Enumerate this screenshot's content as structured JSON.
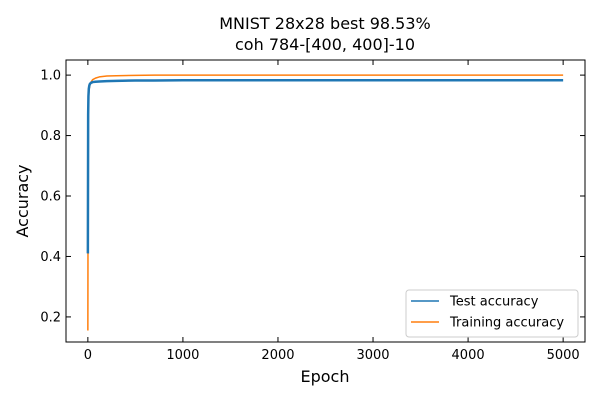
{
  "chart_data": {
    "type": "line",
    "title": "MNIST 28x28 best 98.53%",
    "subtitle": "coh 784-[400, 400]-10",
    "xlabel": "Epoch",
    "ylabel": "Accuracy",
    "xlim": [
      -230,
      5230
    ],
    "ylim": [
      0.117,
      1.05
    ],
    "xticks": [
      0,
      1000,
      2000,
      3000,
      4000,
      5000
    ],
    "xtick_labels": [
      "0",
      "1000",
      "2000",
      "3000",
      "4000",
      "5000"
    ],
    "yticks": [
      0.2,
      0.4,
      0.6,
      0.8,
      1.0
    ],
    "ytick_labels": [
      "0.2",
      "0.4",
      "0.6",
      "0.8",
      "1.0"
    ],
    "grid": false,
    "legend_position": "bottom-right",
    "series": [
      {
        "name": "Test accuracy",
        "color": "#1f77b4",
        "x": [
          0,
          3,
          6,
          10,
          15,
          20,
          30,
          50,
          80,
          120,
          200,
          300,
          500,
          700,
          1000,
          1500,
          2000,
          3000,
          4000,
          5000
        ],
        "y": [
          0.41,
          0.87,
          0.93,
          0.955,
          0.965,
          0.97,
          0.974,
          0.977,
          0.978,
          0.979,
          0.98,
          0.981,
          0.982,
          0.982,
          0.983,
          0.983,
          0.983,
          0.983,
          0.983,
          0.983
        ]
      },
      {
        "name": "Training accuracy",
        "color": "#ff7f0e",
        "x": [
          0,
          3,
          6,
          10,
          15,
          20,
          30,
          50,
          80,
          120,
          200,
          300,
          500,
          700,
          1000,
          1500,
          2000,
          3000,
          4000,
          5000
        ],
        "y": [
          0.155,
          0.8,
          0.9,
          0.94,
          0.955,
          0.965,
          0.975,
          0.985,
          0.99,
          0.994,
          0.997,
          0.998,
          0.999,
          1.0,
          1.0,
          1.0,
          1.0,
          1.0,
          1.0,
          1.0
        ]
      }
    ]
  }
}
